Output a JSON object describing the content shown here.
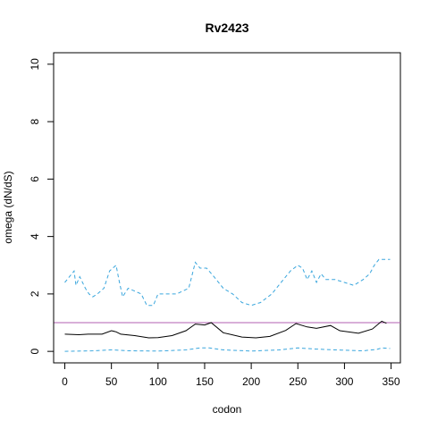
{
  "chart_data": {
    "type": "line",
    "title": "Rv2423",
    "xlabel": "codon",
    "ylabel": "omega (dN/dS)",
    "xlim": [
      -12,
      360
    ],
    "ylim": [
      -0.4,
      10.4
    ],
    "xticks": [
      0,
      50,
      100,
      150,
      200,
      250,
      300,
      350
    ],
    "yticks": [
      0,
      2,
      4,
      6,
      8,
      10
    ],
    "grid": false,
    "reference_line": {
      "y": 1,
      "color": "#b05fb0"
    },
    "series": [
      {
        "style": "solid",
        "color": "#000000",
        "points": [
          [
            0,
            0.6
          ],
          [
            15,
            0.58
          ],
          [
            25,
            0.6
          ],
          [
            40,
            0.6
          ],
          [
            50,
            0.72
          ],
          [
            55,
            0.68
          ],
          [
            60,
            0.6
          ],
          [
            75,
            0.55
          ],
          [
            90,
            0.47
          ],
          [
            100,
            0.48
          ],
          [
            115,
            0.55
          ],
          [
            130,
            0.72
          ],
          [
            140,
            0.95
          ],
          [
            150,
            0.92
          ],
          [
            157,
            1.0
          ],
          [
            170,
            0.65
          ],
          [
            190,
            0.5
          ],
          [
            205,
            0.47
          ],
          [
            220,
            0.52
          ],
          [
            237,
            0.73
          ],
          [
            248,
            0.97
          ],
          [
            260,
            0.85
          ],
          [
            270,
            0.8
          ],
          [
            285,
            0.9
          ],
          [
            295,
            0.72
          ],
          [
            315,
            0.63
          ],
          [
            330,
            0.78
          ],
          [
            340,
            1.05
          ],
          [
            345,
            0.98
          ]
        ]
      },
      {
        "style": "dashed",
        "color": "#3aa6dd",
        "points": [
          [
            0,
            2.4
          ],
          [
            5,
            2.6
          ],
          [
            10,
            2.8
          ],
          [
            12,
            2.3
          ],
          [
            16,
            2.6
          ],
          [
            22,
            2.2
          ],
          [
            26,
            2.0
          ],
          [
            30,
            1.9
          ],
          [
            35,
            2.0
          ],
          [
            42,
            2.2
          ],
          [
            48,
            2.8
          ],
          [
            55,
            3.0
          ],
          [
            58,
            2.5
          ],
          [
            62,
            1.9
          ],
          [
            68,
            2.2
          ],
          [
            75,
            2.1
          ],
          [
            82,
            2.0
          ],
          [
            88,
            1.6
          ],
          [
            95,
            1.6
          ],
          [
            100,
            2.0
          ],
          [
            110,
            2.0
          ],
          [
            120,
            2.0
          ],
          [
            133,
            2.2
          ],
          [
            140,
            3.1
          ],
          [
            145,
            2.9
          ],
          [
            152,
            2.9
          ],
          [
            160,
            2.6
          ],
          [
            170,
            2.2
          ],
          [
            180,
            2.0
          ],
          [
            190,
            1.7
          ],
          [
            200,
            1.6
          ],
          [
            210,
            1.7
          ],
          [
            222,
            2.0
          ],
          [
            232,
            2.4
          ],
          [
            242,
            2.8
          ],
          [
            250,
            3.0
          ],
          [
            255,
            2.9
          ],
          [
            260,
            2.5
          ],
          [
            265,
            2.8
          ],
          [
            270,
            2.4
          ],
          [
            275,
            2.7
          ],
          [
            280,
            2.5
          ],
          [
            290,
            2.5
          ],
          [
            300,
            2.4
          ],
          [
            310,
            2.3
          ],
          [
            320,
            2.5
          ],
          [
            327,
            2.7
          ],
          [
            332,
            3.0
          ],
          [
            337,
            3.2
          ],
          [
            341,
            3.2
          ],
          [
            349,
            3.2
          ]
        ]
      },
      {
        "style": "dashed",
        "color": "#3aa6dd",
        "points": [
          [
            0,
            0.0
          ],
          [
            30,
            0.02
          ],
          [
            50,
            0.05
          ],
          [
            70,
            0.02
          ],
          [
            100,
            0.01
          ],
          [
            130,
            0.05
          ],
          [
            145,
            0.12
          ],
          [
            155,
            0.12
          ],
          [
            170,
            0.05
          ],
          [
            200,
            0.01
          ],
          [
            230,
            0.05
          ],
          [
            250,
            0.12
          ],
          [
            270,
            0.08
          ],
          [
            290,
            0.05
          ],
          [
            320,
            0.02
          ],
          [
            335,
            0.07
          ],
          [
            340,
            0.12
          ],
          [
            349,
            0.1
          ]
        ]
      }
    ]
  }
}
